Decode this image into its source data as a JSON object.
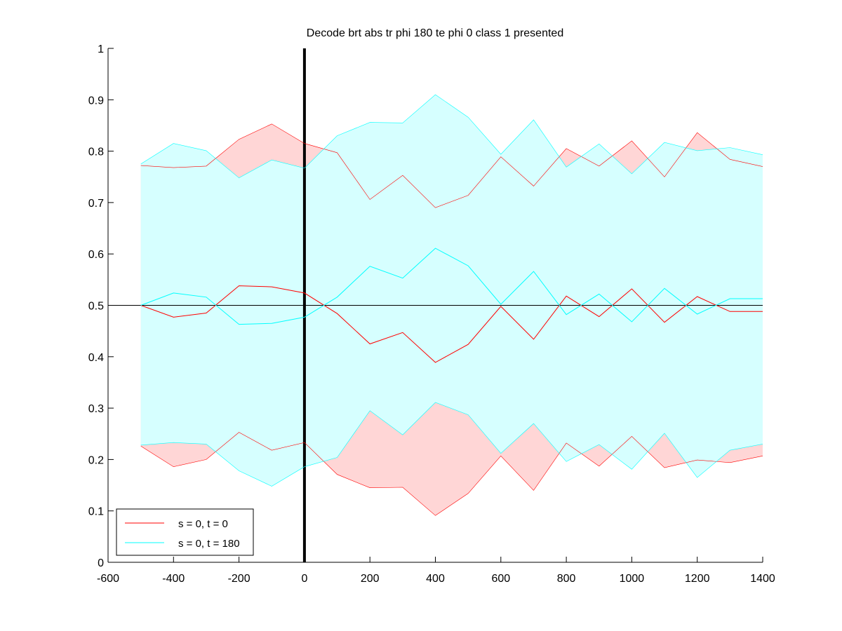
{
  "chart_data": {
    "type": "line",
    "title": "Decode brt abs tr phi 180 te phi 0  class 1 presented",
    "xlabel": "",
    "ylabel": "",
    "xlim": [
      -600,
      1400
    ],
    "ylim": [
      0,
      1
    ],
    "xticks": [
      -600,
      -400,
      -200,
      0,
      200,
      400,
      600,
      800,
      1000,
      1200,
      1400
    ],
    "yticks": [
      0,
      0.1,
      0.2,
      0.3,
      0.4,
      0.5,
      0.6,
      0.7,
      0.8,
      0.9,
      1
    ],
    "x": [
      -500,
      -400,
      -300,
      -200,
      -100,
      0,
      100,
      200,
      300,
      400,
      500,
      600,
      700,
      800,
      900,
      1000,
      1100,
      1200,
      1300,
      1400
    ],
    "series": [
      {
        "name": "s = 0, t = 0",
        "color": "#ff0000",
        "band_color": "#ffd6d6",
        "mean": [
          0.5,
          0.477,
          0.485,
          0.538,
          0.536,
          0.524,
          0.484,
          0.425,
          0.447,
          0.389,
          0.424,
          0.498,
          0.434,
          0.518,
          0.478,
          0.532,
          0.467,
          0.517,
          0.488,
          0.488
        ],
        "upper": [
          0.772,
          0.768,
          0.771,
          0.823,
          0.853,
          0.815,
          0.797,
          0.706,
          0.753,
          0.69,
          0.714,
          0.789,
          0.732,
          0.805,
          0.771,
          0.82,
          0.75,
          0.836,
          0.784,
          0.77
        ],
        "lower": [
          0.226,
          0.186,
          0.2,
          0.253,
          0.218,
          0.233,
          0.171,
          0.145,
          0.146,
          0.091,
          0.134,
          0.207,
          0.14,
          0.232,
          0.187,
          0.245,
          0.184,
          0.199,
          0.194,
          0.207
        ]
      },
      {
        "name": "s = 0, t = 180",
        "color": "#00ffff",
        "band_color": "#d6ffff",
        "mean": [
          0.5,
          0.524,
          0.516,
          0.463,
          0.465,
          0.477,
          0.516,
          0.576,
          0.553,
          0.611,
          0.577,
          0.502,
          0.566,
          0.482,
          0.522,
          0.468,
          0.533,
          0.483,
          0.513,
          0.513
        ],
        "upper": [
          0.775,
          0.815,
          0.801,
          0.748,
          0.783,
          0.767,
          0.83,
          0.856,
          0.855,
          0.91,
          0.866,
          0.794,
          0.861,
          0.769,
          0.814,
          0.756,
          0.817,
          0.801,
          0.807,
          0.793
        ],
        "lower": [
          0.228,
          0.233,
          0.23,
          0.178,
          0.148,
          0.186,
          0.204,
          0.295,
          0.248,
          0.311,
          0.287,
          0.212,
          0.27,
          0.196,
          0.229,
          0.181,
          0.251,
          0.165,
          0.218,
          0.23
        ]
      }
    ],
    "reference_lines": {
      "horizontal_y": 0.5,
      "vertical_x": 0
    },
    "legend": {
      "placement": "bottom-left"
    },
    "grid": false
  }
}
